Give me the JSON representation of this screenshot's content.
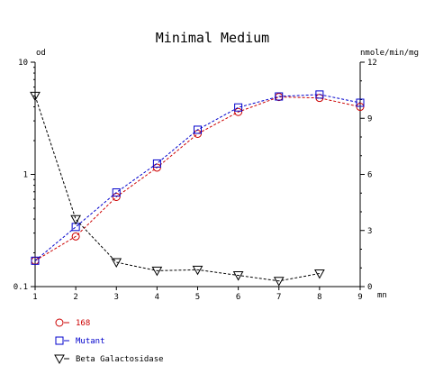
{
  "chart_data": {
    "type": "line",
    "title": "Minimal Medium",
    "left_axis": {
      "label": "od",
      "scale": "log",
      "range": [
        0.1,
        10
      ],
      "ticks": [
        0.1,
        1,
        10
      ],
      "tick_labels": [
        "0.1",
        "1",
        "10"
      ]
    },
    "right_axis": {
      "label": "nmole/min/mg",
      "scale": "linear",
      "range": [
        0,
        12
      ],
      "ticks": [
        0,
        3,
        6,
        9,
        12
      ],
      "tick_labels": [
        "0",
        "3",
        "6",
        "9",
        "12"
      ]
    },
    "x_axis": {
      "label": "mn",
      "range": [
        1,
        9
      ],
      "ticks": [
        1,
        2,
        3,
        4,
        5,
        6,
        7,
        8,
        9
      ],
      "tick_labels": [
        "1",
        "2",
        "3",
        "4",
        "5",
        "6",
        "7",
        "8",
        "9"
      ]
    },
    "grid": false,
    "legend_placement": "bottom-left",
    "series": [
      {
        "name": "168",
        "axis": "left",
        "color": "#cc0000",
        "marker": "circle",
        "x": [
          1,
          2,
          3,
          4,
          5,
          6,
          7,
          8,
          9
        ],
        "y": [
          0.17,
          0.28,
          0.63,
          1.15,
          2.3,
          3.6,
          4.9,
          4.8,
          4.0
        ]
      },
      {
        "name": "Mutant",
        "axis": "left",
        "color": "#0000cc",
        "marker": "square",
        "x": [
          1,
          2,
          3,
          4,
          5,
          6,
          7,
          8,
          9
        ],
        "y": [
          0.17,
          0.34,
          0.69,
          1.25,
          2.5,
          3.95,
          4.95,
          5.15,
          4.35
        ]
      },
      {
        "name": "Beta Galactosidase",
        "axis": "right",
        "color": "#000000",
        "marker": "triangle-down",
        "x": [
          1,
          2,
          3,
          4,
          5,
          6,
          7,
          8
        ],
        "y": [
          10.2,
          3.6,
          1.3,
          0.85,
          0.9,
          0.6,
          0.3,
          0.7
        ]
      }
    ]
  }
}
